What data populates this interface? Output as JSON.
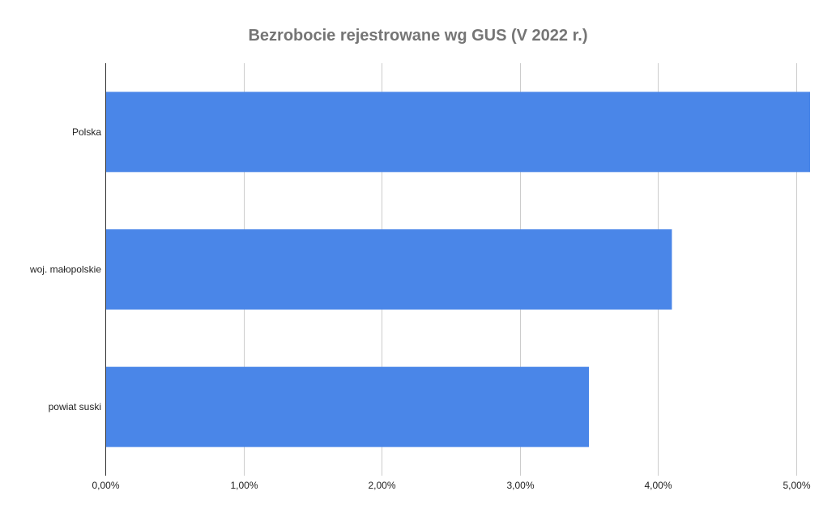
{
  "chart_data": {
    "type": "bar",
    "orientation": "horizontal",
    "title": "Bezrobocie rejestrowane wg GUS (V 2022 r.)",
    "xlabel": "",
    "ylabel": "",
    "categories": [
      "Polska",
      "woj. małopolskie",
      "powiat suski"
    ],
    "values": [
      0.051,
      0.041,
      0.035
    ],
    "xlim": [
      0,
      0.051
    ],
    "x_ticks": [
      0,
      0.01,
      0.02,
      0.03,
      0.04,
      0.05
    ],
    "x_tick_labels": [
      "0,00%",
      "1,00%",
      "2,00%",
      "3,00%",
      "4,00%",
      "5,00%"
    ],
    "grid": true,
    "legend": "none",
    "colors": {
      "bar": "#4a86e8",
      "grid": "#cccccc",
      "axis": "#333333",
      "title": "#757575"
    }
  }
}
